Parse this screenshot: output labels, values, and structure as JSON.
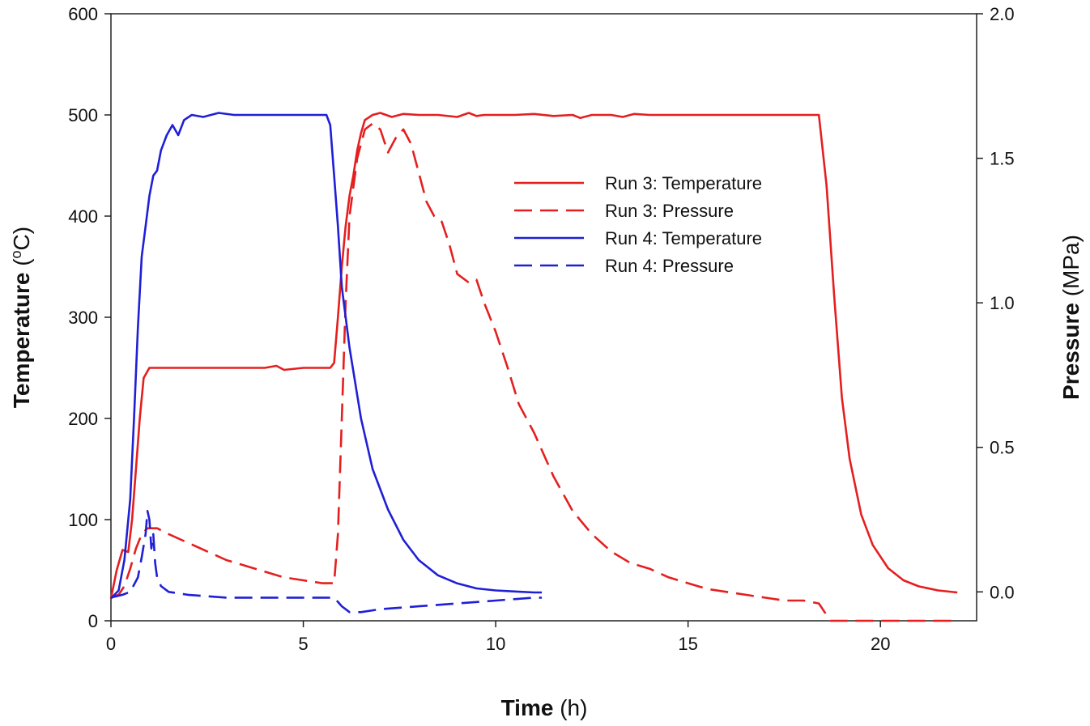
{
  "chart_data": {
    "type": "line",
    "title": "",
    "xlabel": {
      "bold": "Time",
      "unit": " (h)"
    },
    "ylabel_left": {
      "bold": "Temperature",
      "unit_open": " (",
      "sup": "o",
      "unit_rest": "C)"
    },
    "ylabel_right": {
      "bold": "Pressure",
      "unit": " (MPa)"
    },
    "xlim": [
      0,
      22.5
    ],
    "ylim_left": [
      0,
      600
    ],
    "ylim_right": [
      -0.1,
      2.0
    ],
    "xticks": [
      0,
      5,
      10,
      15,
      20
    ],
    "xtick_labels": [
      "0",
      "5",
      "10",
      "15",
      "20"
    ],
    "yticks_left": [
      0,
      100,
      200,
      300,
      400,
      500,
      600
    ],
    "ytick_labels_left": [
      "0",
      "100",
      "200",
      "300",
      "400",
      "500",
      "600"
    ],
    "yticks_right": [
      0.0,
      0.5,
      1.0,
      1.5,
      2.0
    ],
    "ytick_labels_right": [
      "0.0",
      "0.5",
      "1.0",
      "1.5",
      "2.0"
    ],
    "grid": false,
    "legend_position": "top-center",
    "colors": {
      "run3": "#e41f1f",
      "run4": "#1f1fd6"
    },
    "series": [
      {
        "name": "Run 3: Temperature",
        "axis": "left",
        "color": "#e41f1f",
        "dash": false,
        "x": [
          0,
          0.15,
          0.3,
          0.45,
          0.55,
          0.65,
          0.75,
          0.85,
          1.0,
          1.2,
          2,
          3,
          4,
          4.3,
          4.5,
          5,
          5.7,
          5.8,
          5.9,
          6.0,
          6.1,
          6.2,
          6.3,
          6.4,
          6.5,
          6.6,
          6.8,
          7.0,
          7.3,
          7.6,
          8,
          8.5,
          9,
          9.3,
          9.5,
          9.7,
          10,
          10.5,
          11,
          11.5,
          12,
          12.2,
          12.5,
          13,
          13.3,
          13.6,
          14,
          15,
          16,
          17,
          18,
          18.4,
          18.6,
          18.8,
          19,
          19.2,
          19.5,
          19.8,
          20.2,
          20.6,
          21,
          21.5,
          22
        ],
        "y": [
          22,
          50,
          70,
          68,
          100,
          150,
          200,
          240,
          250,
          250,
          250,
          250,
          250,
          252,
          248,
          250,
          250,
          255,
          300,
          350,
          390,
          420,
          440,
          465,
          482,
          495,
          500,
          502,
          498,
          501,
          500,
          500,
          498,
          502,
          499,
          500,
          500,
          500,
          501,
          499,
          500,
          497,
          500,
          500,
          498,
          501,
          500,
          500,
          500,
          500,
          500,
          500,
          430,
          320,
          220,
          160,
          105,
          75,
          52,
          40,
          34,
          30,
          28
        ]
      },
      {
        "name": "Run 3: Pressure",
        "axis": "right",
        "color": "#e41f1f",
        "dash": true,
        "x": [
          0,
          0.2,
          0.35,
          0.5,
          0.65,
          0.8,
          0.95,
          1.2,
          1.5,
          2,
          2.5,
          3,
          3.5,
          4,
          4.5,
          5,
          5.5,
          5.8,
          5.9,
          6.0,
          6.1,
          6.2,
          6.4,
          6.6,
          6.8,
          7.0,
          7.2,
          7.4,
          7.6,
          7.8,
          8.0,
          8.2,
          8.4,
          8.6,
          8.8,
          9.0,
          9.3,
          9.5,
          9.7,
          10,
          10.3,
          10.6,
          11,
          11.5,
          12,
          12.5,
          13,
          13.5,
          14,
          14.5,
          15,
          15.5,
          16,
          16.5,
          17,
          17.5,
          18,
          18.4,
          18.7,
          19,
          20,
          21,
          22
        ],
        "y": [
          -0.02,
          -0.01,
          0.02,
          0.08,
          0.15,
          0.2,
          0.22,
          0.22,
          0.2,
          0.17,
          0.14,
          0.11,
          0.09,
          0.07,
          0.05,
          0.04,
          0.03,
          0.03,
          0.2,
          0.6,
          1.0,
          1.3,
          1.5,
          1.6,
          1.62,
          1.6,
          1.52,
          1.57,
          1.6,
          1.55,
          1.45,
          1.35,
          1.3,
          1.28,
          1.2,
          1.1,
          1.07,
          1.08,
          1.0,
          0.9,
          0.78,
          0.65,
          0.55,
          0.4,
          0.28,
          0.2,
          0.14,
          0.1,
          0.08,
          0.05,
          0.03,
          0.01,
          0,
          -0.01,
          -0.02,
          -0.03,
          -0.03,
          -0.04,
          -0.1,
          -0.1,
          -0.1,
          -0.1,
          -0.1
        ]
      },
      {
        "name": "Run 4: Temperature",
        "axis": "left",
        "color": "#1f1fd6",
        "dash": false,
        "x": [
          0,
          0.2,
          0.35,
          0.5,
          0.6,
          0.7,
          0.8,
          0.9,
          1.0,
          1.1,
          1.2,
          1.3,
          1.45,
          1.6,
          1.75,
          1.9,
          2.1,
          2.4,
          2.8,
          3.2,
          4,
          5,
          5.6,
          5.7,
          5.8,
          5.9,
          6.0,
          6.2,
          6.5,
          6.8,
          7.2,
          7.6,
          8.0,
          8.5,
          9.0,
          9.5,
          10.0,
          10.5,
          11.0,
          11.2
        ],
        "y": [
          22,
          30,
          60,
          120,
          200,
          290,
          360,
          390,
          420,
          440,
          445,
          465,
          480,
          490,
          480,
          495,
          500,
          498,
          502,
          500,
          500,
          500,
          500,
          490,
          440,
          390,
          330,
          270,
          200,
          150,
          110,
          80,
          60,
          45,
          37,
          32,
          30,
          29,
          28,
          28
        ]
      },
      {
        "name": "Run 4: Pressure",
        "axis": "right",
        "color": "#1f1fd6",
        "dash": true,
        "x": [
          0,
          0.3,
          0.5,
          0.7,
          0.8,
          0.9,
          0.95,
          1.0,
          1.05,
          1.1,
          1.15,
          1.2,
          1.3,
          1.5,
          2,
          3,
          4,
          5,
          5.8,
          6.0,
          6.2,
          6.5,
          7,
          8,
          9,
          10,
          11,
          11.2
        ],
        "y": [
          -0.02,
          -0.01,
          0.0,
          0.05,
          0.12,
          0.2,
          0.28,
          0.25,
          0.15,
          0.2,
          0.1,
          0.05,
          0.02,
          0.0,
          -0.01,
          -0.02,
          -0.02,
          -0.02,
          -0.02,
          -0.05,
          -0.07,
          -0.07,
          -0.06,
          -0.05,
          -0.04,
          -0.03,
          -0.02,
          -0.02
        ]
      }
    ]
  }
}
